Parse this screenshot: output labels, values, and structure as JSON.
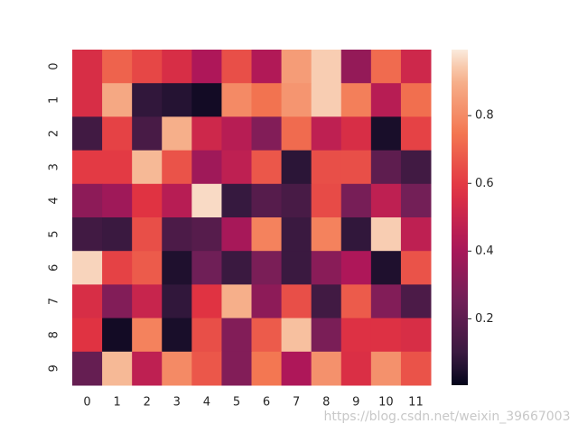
{
  "chart_data": {
    "type": "heatmap",
    "xlabels": [
      0,
      1,
      2,
      3,
      4,
      5,
      6,
      7,
      8,
      9,
      10,
      11
    ],
    "ylabels": [
      0,
      1,
      2,
      3,
      4,
      5,
      6,
      7,
      8,
      9
    ],
    "values": [
      [
        0.55,
        0.7,
        0.63,
        0.55,
        0.42,
        0.65,
        0.43,
        0.85,
        0.95,
        0.35,
        0.72,
        0.52
      ],
      [
        0.55,
        0.88,
        0.08,
        0.06,
        0.03,
        0.8,
        0.74,
        0.83,
        0.95,
        0.77,
        0.45,
        0.73
      ],
      [
        0.12,
        0.62,
        0.14,
        0.9,
        0.52,
        0.45,
        0.3,
        0.72,
        0.47,
        0.55,
        0.04,
        0.62
      ],
      [
        0.6,
        0.6,
        0.92,
        0.66,
        0.38,
        0.47,
        0.67,
        0.07,
        0.65,
        0.65,
        0.2,
        0.12
      ],
      [
        0.33,
        0.38,
        0.58,
        0.45,
        0.97,
        0.09,
        0.18,
        0.14,
        0.64,
        0.27,
        0.47,
        0.26
      ],
      [
        0.12,
        0.1,
        0.65,
        0.15,
        0.18,
        0.4,
        0.78,
        0.1,
        0.78,
        0.08,
        0.95,
        0.47
      ],
      [
        0.96,
        0.62,
        0.68,
        0.05,
        0.25,
        0.1,
        0.28,
        0.1,
        0.32,
        0.42,
        0.05,
        0.66
      ],
      [
        0.55,
        0.3,
        0.5,
        0.08,
        0.58,
        0.9,
        0.33,
        0.65,
        0.12,
        0.68,
        0.3,
        0.15
      ],
      [
        0.58,
        0.03,
        0.78,
        0.04,
        0.65,
        0.3,
        0.68,
        0.93,
        0.28,
        0.57,
        0.57,
        0.55
      ],
      [
        0.22,
        0.92,
        0.47,
        0.8,
        0.67,
        0.3,
        0.75,
        0.42,
        0.82,
        0.56,
        0.82,
        0.66
      ]
    ],
    "clim": [
      0.004,
      0.995
    ],
    "colorbar_ticks": [
      0.2,
      0.4,
      0.6,
      0.8
    ]
  },
  "watermark": "https://blog.csdn.net/weixin_39667003"
}
